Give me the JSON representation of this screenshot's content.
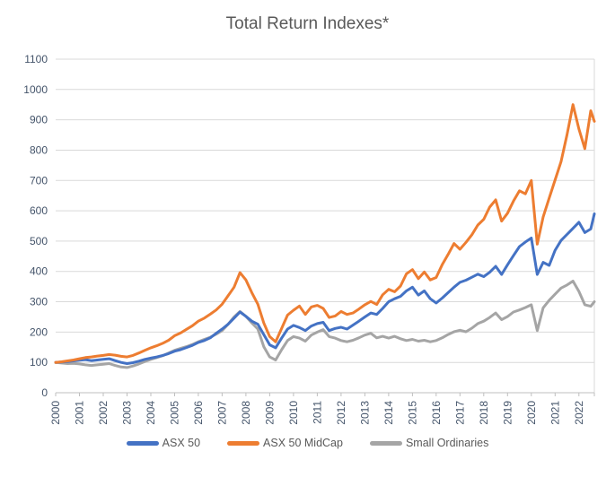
{
  "chart_data": {
    "type": "line",
    "title": "Total Return Indexes*",
    "xlabel": "",
    "ylabel": "",
    "xlim": [
      2000,
      2022.65
    ],
    "ylim": [
      0,
      1100
    ],
    "y_tick_step": 100,
    "x_ticks": [
      2000,
      2001,
      2002,
      2003,
      2004,
      2005,
      2006,
      2007,
      2008,
      2009,
      2010,
      2011,
      2012,
      2013,
      2014,
      2015,
      2016,
      2017,
      2018,
      2019,
      2020,
      2021,
      2022
    ],
    "grid": true,
    "legend_position": "bottom",
    "title_color": "#595959",
    "axis_label_color": "#44546a",
    "grid_color": "#d9d9d9",
    "axis_line_color": "#bfbfbf",
    "x": [
      2000.0,
      2000.25,
      2000.5,
      2000.75,
      2001.0,
      2001.25,
      2001.5,
      2001.75,
      2002.0,
      2002.25,
      2002.5,
      2002.75,
      2003.0,
      2003.25,
      2003.5,
      2003.75,
      2004.0,
      2004.25,
      2004.5,
      2004.75,
      2005.0,
      2005.25,
      2005.5,
      2005.75,
      2006.0,
      2006.25,
      2006.5,
      2006.75,
      2007.0,
      2007.25,
      2007.5,
      2007.75,
      2008.0,
      2008.25,
      2008.5,
      2008.75,
      2009.0,
      2009.25,
      2009.5,
      2009.75,
      2010.0,
      2010.25,
      2010.5,
      2010.75,
      2011.0,
      2011.25,
      2011.5,
      2011.75,
      2012.0,
      2012.25,
      2012.5,
      2012.75,
      2013.0,
      2013.25,
      2013.5,
      2013.75,
      2014.0,
      2014.25,
      2014.5,
      2014.75,
      2015.0,
      2015.25,
      2015.5,
      2015.75,
      2016.0,
      2016.25,
      2016.5,
      2016.75,
      2017.0,
      2017.25,
      2017.5,
      2017.75,
      2018.0,
      2018.25,
      2018.5,
      2018.75,
      2019.0,
      2019.25,
      2019.5,
      2019.75,
      2020.0,
      2020.25,
      2020.5,
      2020.75,
      2021.0,
      2021.25,
      2021.5,
      2021.75,
      2022.0,
      2022.25,
      2022.5,
      2022.65
    ],
    "series": [
      {
        "name": "ASX 50",
        "color": "#4472C4",
        "values": [
          100,
          101,
          103,
          105,
          107,
          109,
          106,
          108,
          110,
          112,
          106,
          100,
          96,
          99,
          104,
          110,
          114,
          118,
          123,
          129,
          137,
          142,
          149,
          156,
          166,
          172,
          181,
          196,
          210,
          226,
          246,
          266,
          252,
          236,
          226,
          192,
          158,
          148,
          180,
          210,
          222,
          215,
          205,
          220,
          228,
          232,
          205,
          212,
          216,
          210,
          223,
          236,
          250,
          263,
          258,
          278,
          300,
          310,
          318,
          336,
          348,
          322,
          336,
          310,
          296,
          312,
          330,
          348,
          364,
          371,
          381,
          391,
          383,
          397,
          417,
          390,
          422,
          452,
          482,
          497,
          510,
          390,
          430,
          420,
          470,
          502,
          522,
          542,
          562,
          528,
          540,
          590
        ]
      },
      {
        "name": "ASX 50 MidCap",
        "color": "#ED7D31",
        "values": [
          100,
          102,
          105,
          108,
          112,
          116,
          118,
          121,
          123,
          126,
          124,
          120,
          118,
          123,
          131,
          140,
          148,
          155,
          163,
          173,
          188,
          197,
          209,
          221,
          236,
          246,
          259,
          273,
          292,
          320,
          348,
          396,
          372,
          330,
          292,
          230,
          185,
          168,
          212,
          256,
          272,
          286,
          258,
          283,
          288,
          278,
          248,
          253,
          268,
          258,
          263,
          276,
          290,
          301,
          291,
          323,
          341,
          333,
          352,
          392,
          406,
          376,
          398,
          372,
          380,
          422,
          456,
          492,
          473,
          496,
          521,
          553,
          572,
          612,
          636,
          566,
          592,
          632,
          666,
          656,
          700,
          490,
          580,
          642,
          702,
          762,
          850,
          950,
          870,
          805,
          930,
          895
        ]
      },
      {
        "name": "Small Ordinaries",
        "color": "#A5A5A5",
        "values": [
          100,
          98,
          96,
          97,
          95,
          92,
          90,
          92,
          94,
          96,
          90,
          85,
          83,
          88,
          95,
          103,
          110,
          116,
          122,
          131,
          140,
          146,
          152,
          159,
          168,
          176,
          183,
          193,
          205,
          226,
          250,
          268,
          252,
          230,
          210,
          152,
          118,
          108,
          142,
          172,
          185,
          180,
          170,
          190,
          200,
          208,
          185,
          180,
          172,
          168,
          173,
          181,
          190,
          196,
          181,
          186,
          180,
          186,
          178,
          172,
          176,
          170,
          173,
          168,
          172,
          181,
          192,
          201,
          206,
          201,
          213,
          228,
          236,
          248,
          263,
          241,
          251,
          266,
          273,
          281,
          290,
          205,
          280,
          305,
          325,
          345,
          355,
          368,
          334,
          290,
          285,
          300
        ]
      }
    ]
  }
}
